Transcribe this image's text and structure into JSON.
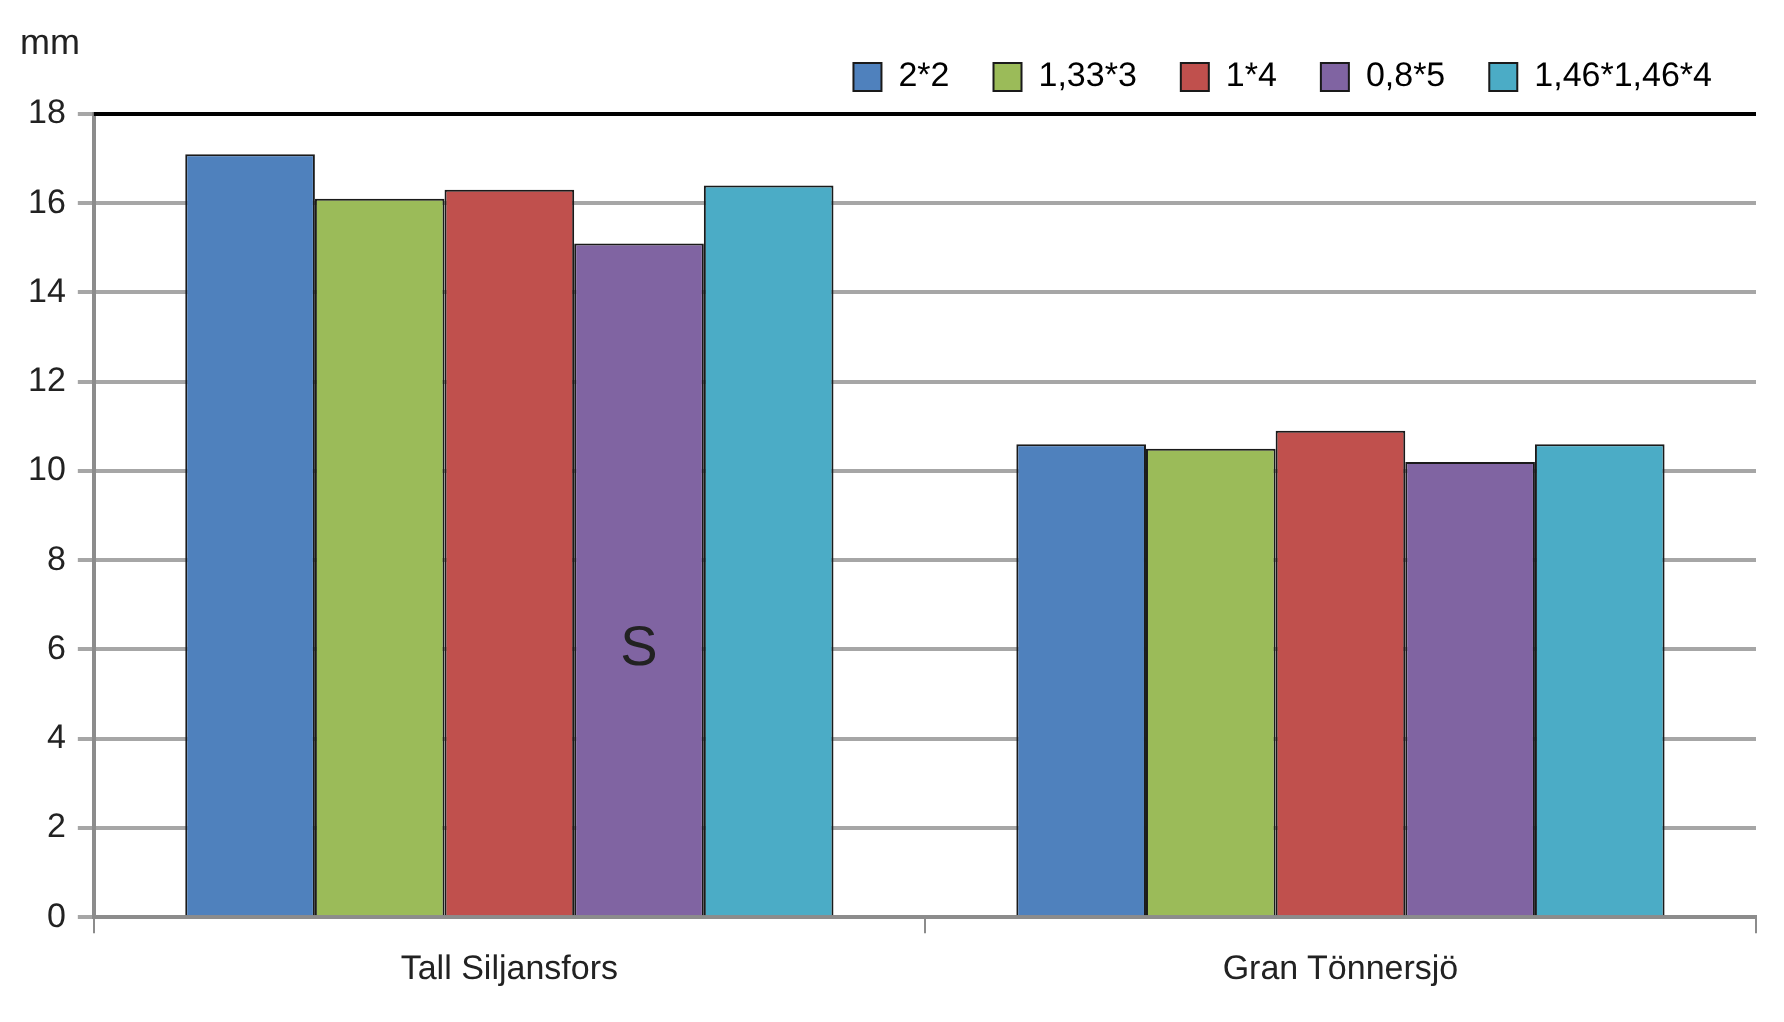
{
  "chart_data": {
    "type": "bar",
    "ylabel": "mm",
    "categories": [
      "Tall Siljansfors",
      "Gran Tönnersjö"
    ],
    "series": [
      {
        "name": "2*2",
        "color": "#4f81bd",
        "values": [
          17.1,
          10.6
        ]
      },
      {
        "name": "1,33*3",
        "color": "#9bbb59",
        "values": [
          16.1,
          10.5
        ]
      },
      {
        "name": "1*4",
        "color": "#c0504d",
        "values": [
          16.3,
          10.9
        ]
      },
      {
        "name": "0,8*5",
        "color": "#8064a2",
        "values": [
          15.1,
          10.2
        ]
      },
      {
        "name": "1,46*1,46*4",
        "color": "#4bacc6",
        "values": [
          16.4,
          10.6
        ]
      }
    ],
    "ylim": [
      0,
      18
    ],
    "yticks": [
      0,
      2,
      4,
      6,
      8,
      10,
      12,
      14,
      16,
      18
    ],
    "grid": "y",
    "legend": "top right",
    "annotations": [
      "S"
    ]
  }
}
